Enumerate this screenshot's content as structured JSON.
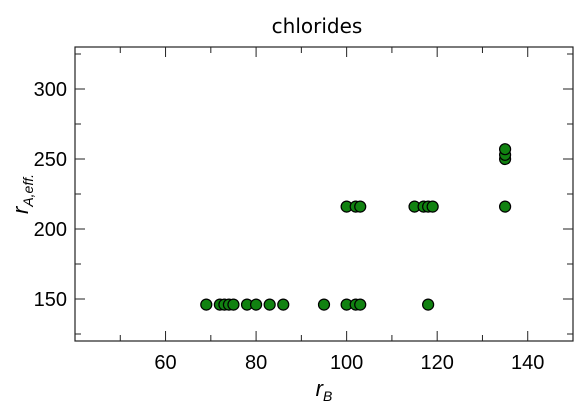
{
  "chart_data": {
    "type": "scatter",
    "title": "chlorides",
    "xlabel": "r",
    "xlabel_subscript": "B",
    "ylabel": "r",
    "ylabel_subscript": "A,eff.",
    "xlim": [
      40,
      150
    ],
    "ylim": [
      120,
      330
    ],
    "x_ticks": [
      60,
      80,
      100,
      120,
      140
    ],
    "y_ticks": [
      150,
      200,
      250,
      300
    ],
    "x_minor_ticks": [
      50,
      70,
      90,
      110,
      130
    ],
    "y_minor_ticks": [
      125,
      175,
      225,
      275,
      325
    ],
    "grid": false,
    "marker_color": "#118211",
    "marker_edge_color": "#000000",
    "points": [
      {
        "x": 69,
        "y": 146
      },
      {
        "x": 72,
        "y": 146
      },
      {
        "x": 73,
        "y": 146
      },
      {
        "x": 74,
        "y": 146
      },
      {
        "x": 75,
        "y": 146
      },
      {
        "x": 78,
        "y": 146
      },
      {
        "x": 80,
        "y": 146
      },
      {
        "x": 83,
        "y": 146
      },
      {
        "x": 86,
        "y": 146
      },
      {
        "x": 95,
        "y": 146
      },
      {
        "x": 100,
        "y": 146
      },
      {
        "x": 102,
        "y": 146
      },
      {
        "x": 103,
        "y": 146
      },
      {
        "x": 118,
        "y": 146
      },
      {
        "x": 100,
        "y": 216
      },
      {
        "x": 102,
        "y": 216
      },
      {
        "x": 103,
        "y": 216
      },
      {
        "x": 115,
        "y": 216
      },
      {
        "x": 117,
        "y": 216
      },
      {
        "x": 118,
        "y": 216
      },
      {
        "x": 119,
        "y": 216
      },
      {
        "x": 135,
        "y": 216
      },
      {
        "x": 135,
        "y": 250
      },
      {
        "x": 135,
        "y": 253
      },
      {
        "x": 135,
        "y": 257
      }
    ]
  }
}
